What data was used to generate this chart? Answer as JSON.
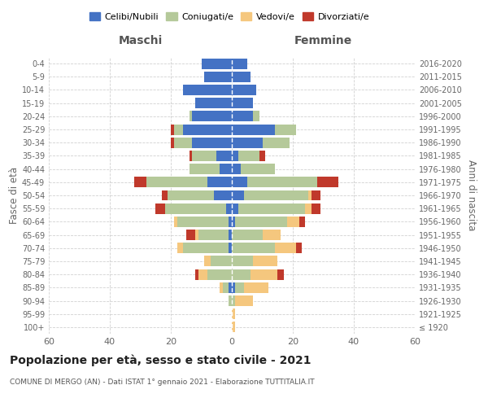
{
  "age_groups": [
    "100+",
    "95-99",
    "90-94",
    "85-89",
    "80-84",
    "75-79",
    "70-74",
    "65-69",
    "60-64",
    "55-59",
    "50-54",
    "45-49",
    "40-44",
    "35-39",
    "30-34",
    "25-29",
    "20-24",
    "15-19",
    "10-14",
    "5-9",
    "0-4"
  ],
  "birth_years": [
    "≤ 1920",
    "1921-1925",
    "1926-1930",
    "1931-1935",
    "1936-1940",
    "1941-1945",
    "1946-1950",
    "1951-1955",
    "1956-1960",
    "1961-1965",
    "1966-1970",
    "1971-1975",
    "1976-1980",
    "1981-1985",
    "1986-1990",
    "1991-1995",
    "1996-2000",
    "2001-2005",
    "2006-2010",
    "2011-2015",
    "2016-2020"
  ],
  "maschi": {
    "celibi": [
      0,
      0,
      0,
      1,
      0,
      0,
      1,
      1,
      1,
      2,
      6,
      8,
      4,
      5,
      13,
      16,
      13,
      12,
      16,
      9,
      10
    ],
    "coniugati": [
      0,
      0,
      1,
      2,
      8,
      7,
      15,
      10,
      17,
      20,
      15,
      20,
      10,
      8,
      6,
      3,
      1,
      0,
      0,
      0,
      0
    ],
    "vedovi": [
      0,
      0,
      0,
      1,
      3,
      2,
      2,
      1,
      1,
      0,
      0,
      0,
      0,
      0,
      0,
      0,
      0,
      0,
      0,
      0,
      0
    ],
    "divorziati": [
      0,
      0,
      0,
      0,
      1,
      0,
      0,
      3,
      0,
      3,
      2,
      4,
      0,
      1,
      1,
      1,
      0,
      0,
      0,
      0,
      0
    ]
  },
  "femmine": {
    "nubili": [
      0,
      0,
      0,
      1,
      0,
      0,
      0,
      0,
      1,
      2,
      4,
      5,
      3,
      2,
      10,
      14,
      7,
      7,
      8,
      6,
      5
    ],
    "coniugate": [
      0,
      0,
      1,
      3,
      6,
      7,
      14,
      10,
      17,
      22,
      21,
      23,
      11,
      7,
      9,
      7,
      2,
      0,
      0,
      0,
      0
    ],
    "vedove": [
      1,
      1,
      6,
      8,
      9,
      8,
      7,
      6,
      4,
      2,
      1,
      0,
      0,
      0,
      0,
      0,
      0,
      0,
      0,
      0,
      0
    ],
    "divorziate": [
      0,
      0,
      0,
      0,
      2,
      0,
      2,
      0,
      2,
      3,
      3,
      7,
      0,
      2,
      0,
      0,
      0,
      0,
      0,
      0,
      0
    ]
  },
  "colors": {
    "celibi": "#4472c4",
    "coniugati": "#b5c99a",
    "vedovi": "#f5c77e",
    "divorziati": "#c0392b"
  },
  "xlim": 60,
  "title": "Popolazione per età, sesso e stato civile - 2021",
  "subtitle": "COMUNE DI MERGO (AN) - Dati ISTAT 1° gennaio 2021 - Elaborazione TUTTITALIA.IT",
  "ylabel_left": "Fasce di età",
  "ylabel_right": "Anni di nascita",
  "xlabel_maschi": "Maschi",
  "xlabel_femmine": "Femmine",
  "legend_labels": [
    "Celibi/Nubili",
    "Coniugati/e",
    "Vedovi/e",
    "Divorziati/e"
  ],
  "background_color": "#ffffff",
  "grid_color": "#cccccc"
}
